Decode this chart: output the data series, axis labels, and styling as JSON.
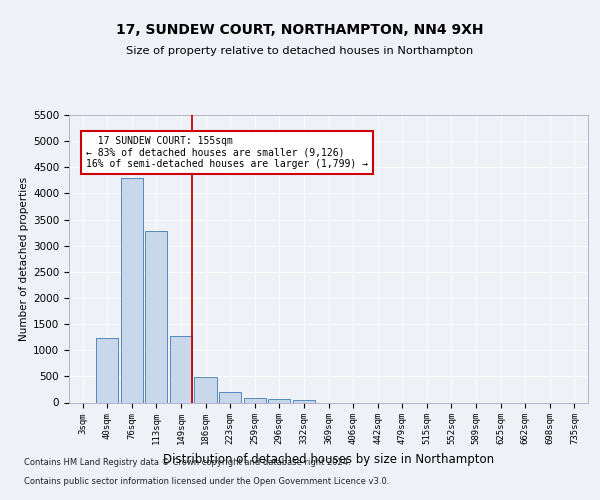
{
  "title_line1": "17, SUNDEW COURT, NORTHAMPTON, NN4 9XH",
  "title_line2": "Size of property relative to detached houses in Northampton",
  "xlabel": "Distribution of detached houses by size in Northampton",
  "ylabel": "Number of detached properties",
  "footer_line1": "Contains HM Land Registry data © Crown copyright and database right 2024.",
  "footer_line2": "Contains public sector information licensed under the Open Government Licence v3.0.",
  "annotation_line1": "17 SUNDEW COURT: 155sqm",
  "annotation_line2": "← 83% of detached houses are smaller (9,126)",
  "annotation_line3": "16% of semi-detached houses are larger (1,799) →",
  "bar_color": "#c8d8ea",
  "bar_edge_color": "#5588bb",
  "vline_color": "#cc0000",
  "annotation_box_color": "#cc0000",
  "categories": [
    "3sqm",
    "40sqm",
    "76sqm",
    "113sqm",
    "149sqm",
    "186sqm",
    "223sqm",
    "259sqm",
    "296sqm",
    "332sqm",
    "369sqm",
    "406sqm",
    "442sqm",
    "479sqm",
    "515sqm",
    "552sqm",
    "589sqm",
    "625sqm",
    "662sqm",
    "698sqm",
    "735sqm"
  ],
  "values": [
    0,
    1230,
    4300,
    3280,
    1270,
    480,
    200,
    90,
    60,
    50,
    0,
    0,
    0,
    0,
    0,
    0,
    0,
    0,
    0,
    0,
    0
  ],
  "ylim": [
    0,
    5500
  ],
  "yticks": [
    0,
    500,
    1000,
    1500,
    2000,
    2500,
    3000,
    3500,
    4000,
    4500,
    5000,
    5500
  ],
  "vline_x_index": 4.45,
  "background_color": "#eef2f7",
  "grid_color": "#ffffff"
}
